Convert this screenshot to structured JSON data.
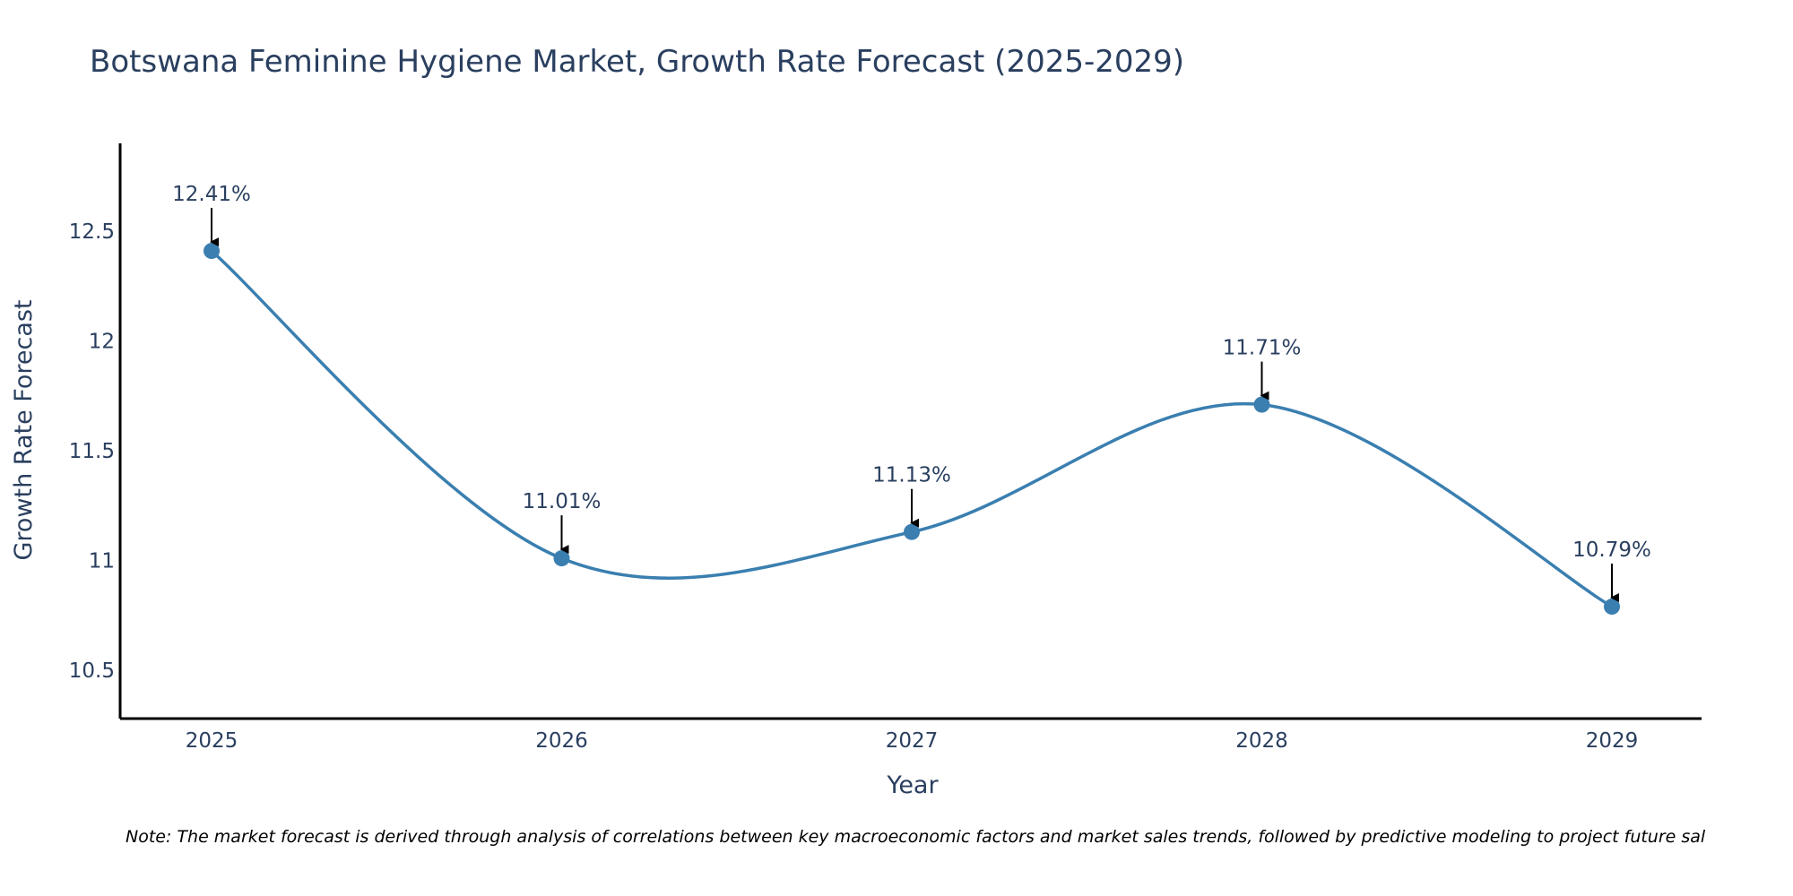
{
  "chart_data": {
    "type": "line",
    "title": "Botswana Feminine Hygiene Market, Growth Rate Forecast (2025-2029)",
    "xlabel": "Year",
    "ylabel": "Growth Rate Forecast",
    "categories": [
      "2025",
      "2026",
      "2027",
      "2028",
      "2029"
    ],
    "series": [
      {
        "name": "Growth Rate Forecast",
        "values": [
          12.41,
          11.01,
          11.13,
          11.71,
          10.79
        ],
        "labels": [
          "12.41%",
          "11.01%",
          "11.13%",
          "11.71%",
          "10.79%"
        ],
        "color": "#3a7fb0"
      }
    ],
    "ylim": [
      10.28,
      12.9
    ],
    "yticks": [
      10.5,
      11,
      11.5,
      12,
      12.5
    ],
    "ytick_labels": [
      "10.5",
      "11",
      "11.5",
      "12",
      "12.5"
    ],
    "grid": false,
    "shape": "spline"
  },
  "note": "Note: The market forecast is derived through analysis of correlations between key macroeconomic factors and market sales trends, followed by predictive modeling to project future sal",
  "colors": {
    "line": "#3a7fb0",
    "marker": "#3a7fb0",
    "axis": "#000000",
    "text": "#2a3f5f",
    "arrow": "#000000"
  }
}
